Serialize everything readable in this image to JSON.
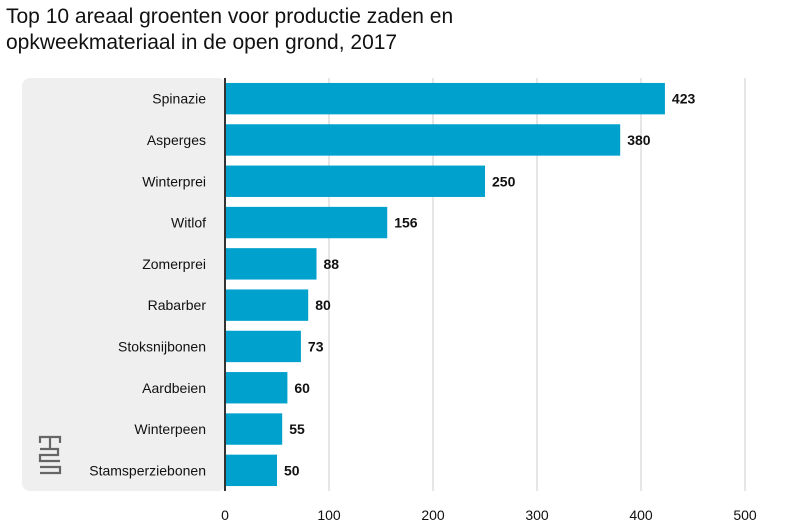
{
  "chart_data": {
    "type": "bar",
    "orientation": "horizontal",
    "title_lines": [
      "Top 10 areaal groenten voor productie zaden en",
      "opkweekmateriaal in de open grond, 2017"
    ],
    "categories": [
      "Spinazie",
      "Asperges",
      "Winterprei",
      "Witlof",
      "Zomerprei",
      "Rabarber",
      "Stoksnijbonen",
      "Aardbeien",
      "Winterpeen",
      "Stamsperziebonen"
    ],
    "values": [
      423,
      380,
      250,
      156,
      88,
      80,
      73,
      60,
      55,
      50
    ],
    "data_labels": [
      "423",
      "380",
      "250",
      "156",
      "88",
      "80",
      "73",
      "60",
      "55",
      "50"
    ],
    "xlim": [
      0,
      500
    ],
    "x_ticks": [
      0,
      100,
      200,
      300,
      400,
      500
    ],
    "x_tick_labels": [
      "0",
      "100",
      "200",
      "300",
      "400",
      "500"
    ],
    "grid": "vertical",
    "bar_color": "#00a1cd",
    "label_panel_color": "#efefef",
    "logo": "cbs-logo"
  }
}
